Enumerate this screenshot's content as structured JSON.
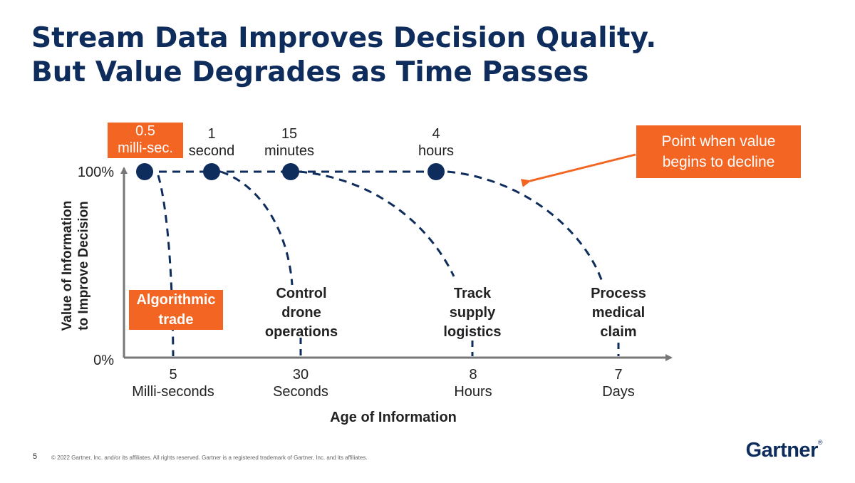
{
  "title": {
    "line1": "Stream Data Improves Decision Quality.",
    "line2": "But Value Degrades as Time Passes"
  },
  "callout": {
    "line1": "Point when value",
    "line2": "begins to decline"
  },
  "axes": {
    "y_label_line1": "Value of Information",
    "y_label_line2": "to Improve Decision",
    "y_top": "100%",
    "y_bottom": "0%",
    "x_label": "Age of Information"
  },
  "decline_points": [
    {
      "line1": "0.5",
      "line2": "milli-sec.",
      "highlighted": true
    },
    {
      "line1": "1",
      "line2": "second",
      "highlighted": false
    },
    {
      "line1": "15",
      "line2": "minutes",
      "highlighted": false
    },
    {
      "line1": "4",
      "line2": "hours",
      "highlighted": false
    }
  ],
  "x_ticks": [
    {
      "line1": "5",
      "line2": "Milli-seconds"
    },
    {
      "line1": "30",
      "line2": "Seconds"
    },
    {
      "line1": "8",
      "line2": "Hours"
    },
    {
      "line1": "7",
      "line2": "Days"
    }
  ],
  "use_cases": [
    {
      "lines": [
        "Algorithmic",
        "trade"
      ],
      "highlighted": true
    },
    {
      "lines": [
        "Control",
        "drone",
        "operations"
      ],
      "highlighted": false
    },
    {
      "lines": [
        "Track",
        "supply",
        "logistics"
      ],
      "highlighted": false
    },
    {
      "lines": [
        "Process",
        "medical",
        "claim"
      ],
      "highlighted": false
    }
  ],
  "colors": {
    "navy": "#0f2d5c",
    "orange": "#f26522",
    "axis": "#777777"
  },
  "footer": {
    "page_number": "5",
    "copyright": "© 2022 Gartner, Inc. and/or its affiliates. All rights reserved. Gartner is a registered trademark of Gartner, Inc. and its affiliates.",
    "logo": "Gartner",
    "logo_mark": "®"
  }
}
